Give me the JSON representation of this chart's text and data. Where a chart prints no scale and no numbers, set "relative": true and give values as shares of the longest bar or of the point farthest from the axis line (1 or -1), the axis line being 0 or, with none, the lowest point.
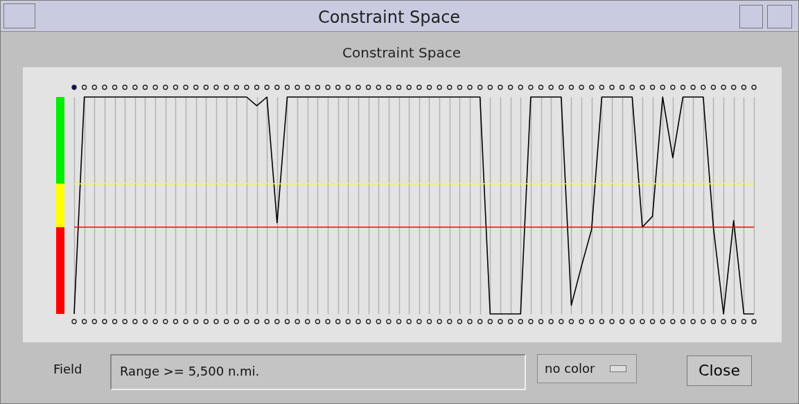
{
  "chart_data": {
    "type": "line",
    "title": "Constraint Space",
    "relative": true,
    "grid": "x",
    "marker": "none",
    "categories": [
      null,
      null,
      null,
      null,
      null,
      null,
      null,
      null,
      null,
      null,
      null,
      null,
      null,
      null,
      null,
      null,
      null,
      null,
      null,
      null,
      null,
      null,
      null,
      null,
      null,
      null,
      null,
      null,
      null,
      null,
      null,
      null,
      null,
      null,
      null,
      null,
      null,
      null,
      null,
      null,
      null,
      null,
      null,
      null,
      null,
      null,
      null,
      null,
      null,
      null,
      null,
      null,
      null,
      null,
      null,
      null,
      null,
      null,
      null,
      null,
      null,
      null,
      null,
      null,
      null,
      null,
      null,
      null
    ],
    "series": [
      {
        "color": "#000000",
        "values": [
          0,
          1,
          1,
          1,
          1,
          1,
          1,
          1,
          1,
          1,
          1,
          1,
          1,
          1,
          1,
          1,
          1,
          1,
          0.96,
          1,
          0.42,
          1,
          1,
          1,
          1,
          1,
          1,
          1,
          1,
          1,
          1,
          1,
          1,
          1,
          1,
          1,
          1,
          1,
          1,
          1,
          1,
          0,
          0,
          0,
          0,
          1,
          1,
          1,
          1,
          0.04,
          0.22,
          0.39,
          1,
          1,
          1,
          1,
          0.4,
          0.45,
          1,
          0.72,
          1,
          1,
          1,
          0.4,
          0,
          0.43,
          0,
          0
        ]
      }
    ],
    "ref_lines": [
      {
        "axis": "y",
        "value": 0.6,
        "color": "#ffff00"
      },
      {
        "axis": "y",
        "value": 0.4,
        "color": "#ff0000"
      }
    ],
    "annotations": [
      "Constraint Space",
      "Field",
      "Range >= 5,500 n.mi.",
      "no color",
      "Close"
    ]
  }
}
